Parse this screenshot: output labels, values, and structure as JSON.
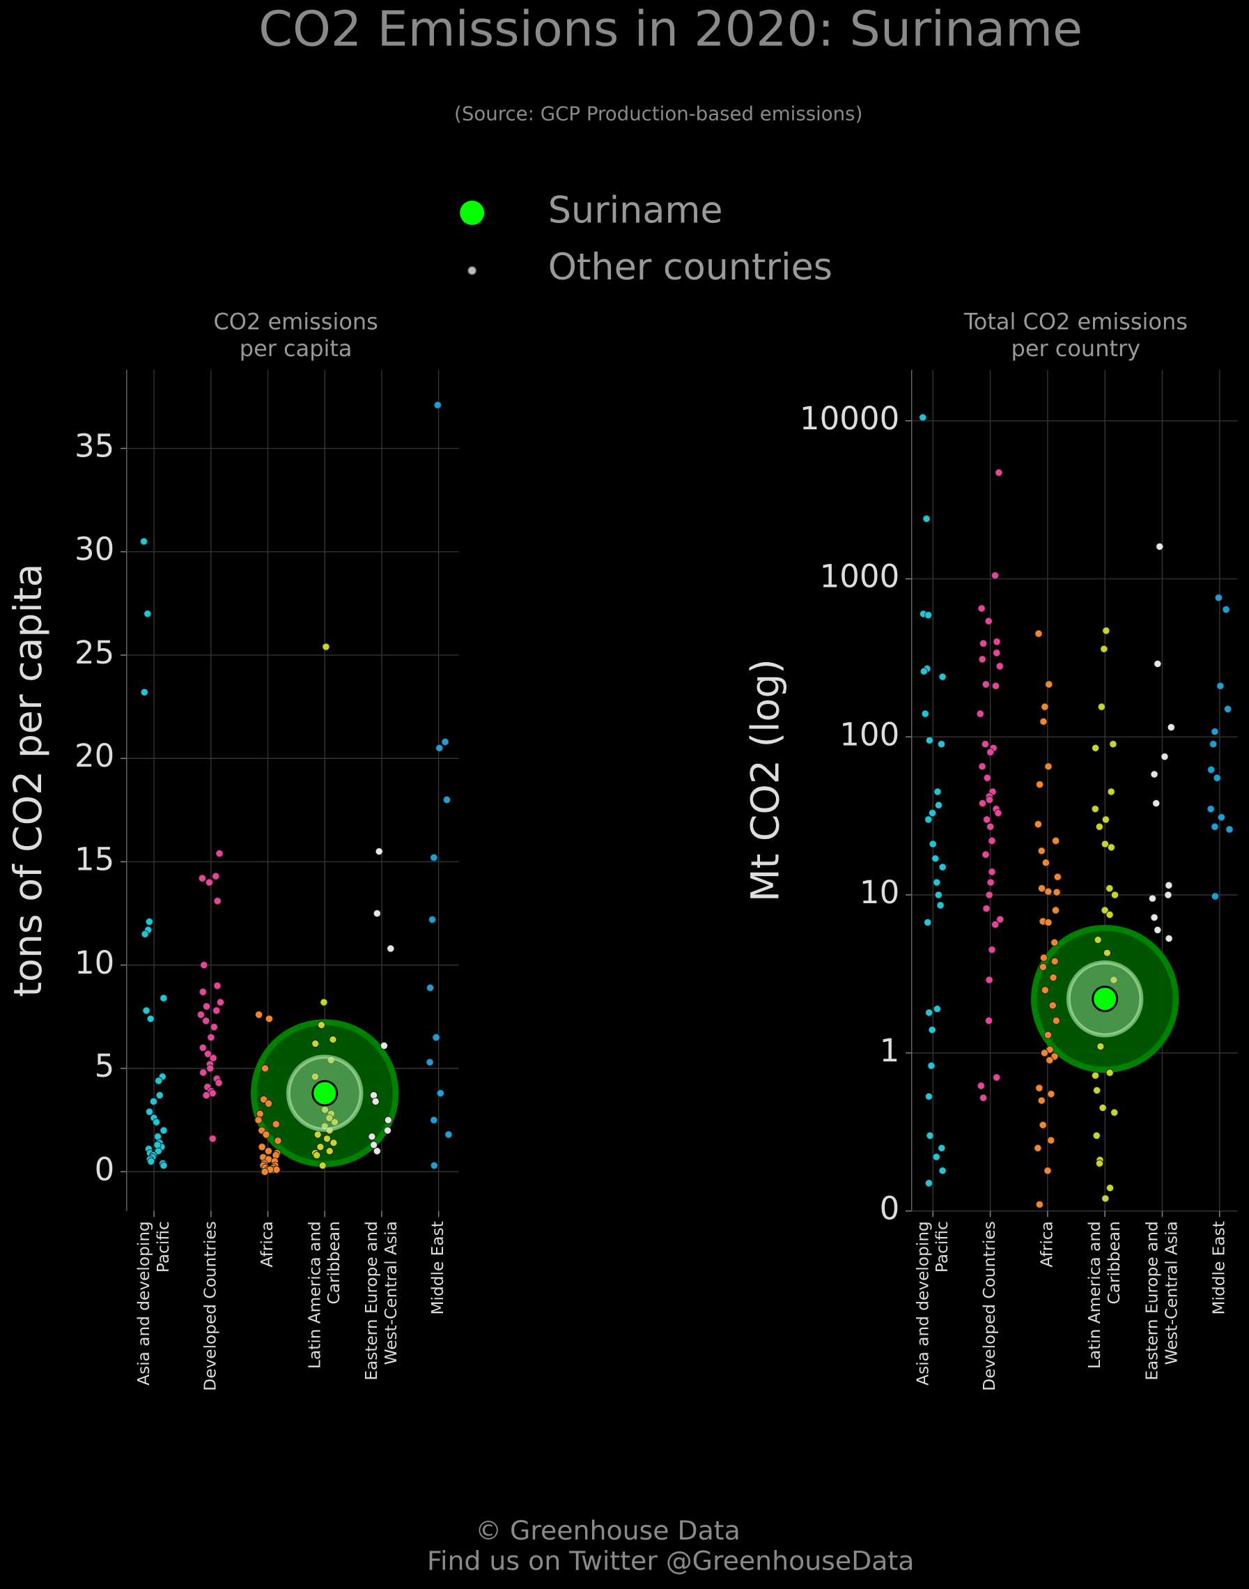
{
  "title": "CO2 Emissions in 2020: Suriname",
  "subtitle": "(Source: GCP Production-based emissions)",
  "legend": [
    {
      "name": "Suriname",
      "color": "#00ff00"
    },
    {
      "name": "Other countries",
      "color": "#bbbbbb"
    }
  ],
  "footer": [
    "© Greenhouse Data",
    "Find us on Twitter @GreenhouseData"
  ],
  "chart_data": [
    {
      "type": "strip",
      "title": "CO2 emissions\nper capita",
      "ylabel": "tons of CO2 per capita",
      "categories": [
        "Asia and developing\nPacific",
        "Developed Countries",
        "Africa",
        "Latin America and\nCaribbean",
        "Eastern Europe and\nWest-Central Asia",
        "Middle East"
      ],
      "colors": [
        "#1fc6d6",
        "#e8449a",
        "#f5862b",
        "#c8d62b",
        "#e6e6e6",
        "#1f9ed6"
      ],
      "values": [
        [
          30.5,
          27,
          23.2,
          12.1,
          11.7,
          11.5,
          8.4,
          7.8,
          7.4,
          4.6,
          4.4,
          3.7,
          3.4,
          2.9,
          2.6,
          2.4,
          2.0,
          1.7,
          1.4,
          1.2,
          1.1,
          1.0,
          0.9,
          0.8,
          0.7,
          0.6,
          0.5,
          0.4,
          1.3,
          0.3
        ],
        [
          15.4,
          14.3,
          14.2,
          14.0,
          13.1,
          10.0,
          9.0,
          8.7,
          8.2,
          8.0,
          7.8,
          7.6,
          7.3,
          7.0,
          6.5,
          6.0,
          5.7,
          5.5,
          5.2,
          5.0,
          4.8,
          4.5,
          4.3,
          4.1,
          3.9,
          3.8,
          3.7,
          1.6
        ],
        [
          7.6,
          7.4,
          5.0,
          3.5,
          3.3,
          2.8,
          2.5,
          2.3,
          2.0,
          1.8,
          1.5,
          1.2,
          1.0,
          0.9,
          0.8,
          0.7,
          0.6,
          0.5,
          0.4,
          0.3,
          0.3,
          0.2,
          0.2,
          0.1,
          0.1,
          0.1,
          0.1,
          0.0
        ],
        [
          25.4,
          8.2,
          7.1,
          6.4,
          6.2,
          5.4,
          4.6,
          4.0,
          3.5,
          3.0,
          2.8,
          2.6,
          2.4,
          2.2,
          2.0,
          1.8,
          1.6,
          1.4,
          1.2,
          1.0,
          0.9,
          0.8,
          0.3
        ],
        [
          15.5,
          12.5,
          10.8,
          6.1,
          3.7,
          3.4,
          2.5,
          2.0,
          1.7,
          1.3,
          1.0
        ],
        [
          37.1,
          20.8,
          20.5,
          18.0,
          15.2,
          12.2,
          8.9,
          6.5,
          5.3,
          3.8,
          2.5,
          1.8,
          0.3
        ]
      ],
      "highlight": {
        "name": "Suriname",
        "category": "Latin America and\nCaribbean",
        "value": 3.8
      },
      "ylim": [
        -1.9,
        38.8
      ],
      "yticks": [
        0,
        5,
        10,
        15,
        20,
        25,
        30,
        35
      ],
      "log": false,
      "grid": true
    },
    {
      "type": "strip",
      "title": "Total CO2 emissions\nper country",
      "ylabel": "Mt CO2 (log)",
      "categories": [
        "Asia and developing\nPacific",
        "Developed Countries",
        "Africa",
        "Latin America and\nCaribbean",
        "Eastern Europe and\nWest-Central Asia",
        "Middle East"
      ],
      "colors": [
        "#1fc6d6",
        "#e8449a",
        "#f5862b",
        "#c8d62b",
        "#e6e6e6",
        "#1f9ed6"
      ],
      "values": [
        [
          10500,
          2400,
          600,
          590,
          270,
          260,
          240,
          140,
          95,
          90,
          45,
          37,
          33,
          30,
          21,
          17,
          15,
          12,
          10,
          8.6,
          6.7,
          1.9,
          1.8,
          1.4,
          0.83,
          0.53,
          0.3,
          0.25,
          0.22,
          0.18,
          0.15
        ],
        [
          4700,
          1050,
          650,
          540,
          400,
          390,
          340,
          310,
          280,
          215,
          210,
          140,
          90,
          85,
          80,
          65,
          55,
          45,
          42,
          40,
          38,
          35,
          33,
          30,
          27,
          22,
          18,
          14,
          12,
          10,
          8.2,
          7,
          6.5,
          4.5,
          2.9,
          1.6,
          0.7,
          0.62,
          0.52
        ],
        [
          450,
          215,
          155,
          125,
          65,
          50,
          28,
          22,
          19,
          16,
          13,
          11,
          10.5,
          10.4,
          8,
          6.8,
          6.7,
          5,
          4,
          3.8,
          3.5,
          3,
          2.5,
          2,
          1.6,
          1.3,
          1.05,
          1.0,
          0.95,
          0.9,
          0.6,
          0.55,
          0.5,
          0.35,
          0.28,
          0.25,
          0.18,
          0.11
        ],
        [
          470,
          360,
          155,
          90,
          85,
          45,
          35,
          30,
          27,
          21,
          20,
          11,
          10,
          8,
          7.5,
          5.2,
          4.3,
          2.9,
          1.1,
          0.75,
          0.72,
          0.58,
          0.45,
          0.42,
          0.3,
          0.21,
          0.2,
          0.14,
          0.12
        ],
        [
          1600,
          290,
          115,
          75,
          58,
          38,
          11.5,
          10,
          9.5,
          7.2,
          6,
          5.3
        ],
        [
          760,
          640,
          210,
          150,
          108,
          90,
          62,
          55,
          35,
          31,
          27,
          26,
          9.8
        ]
      ],
      "highlight": {
        "name": "Suriname",
        "category": "Latin America and\nCaribbean",
        "value": 2.2
      },
      "ylim": [
        0.1,
        21000
      ],
      "yticks": [
        {
          "value": 0.1,
          "label": "0"
        },
        1,
        10,
        100,
        1000,
        10000
      ],
      "log": true,
      "grid": true
    }
  ]
}
